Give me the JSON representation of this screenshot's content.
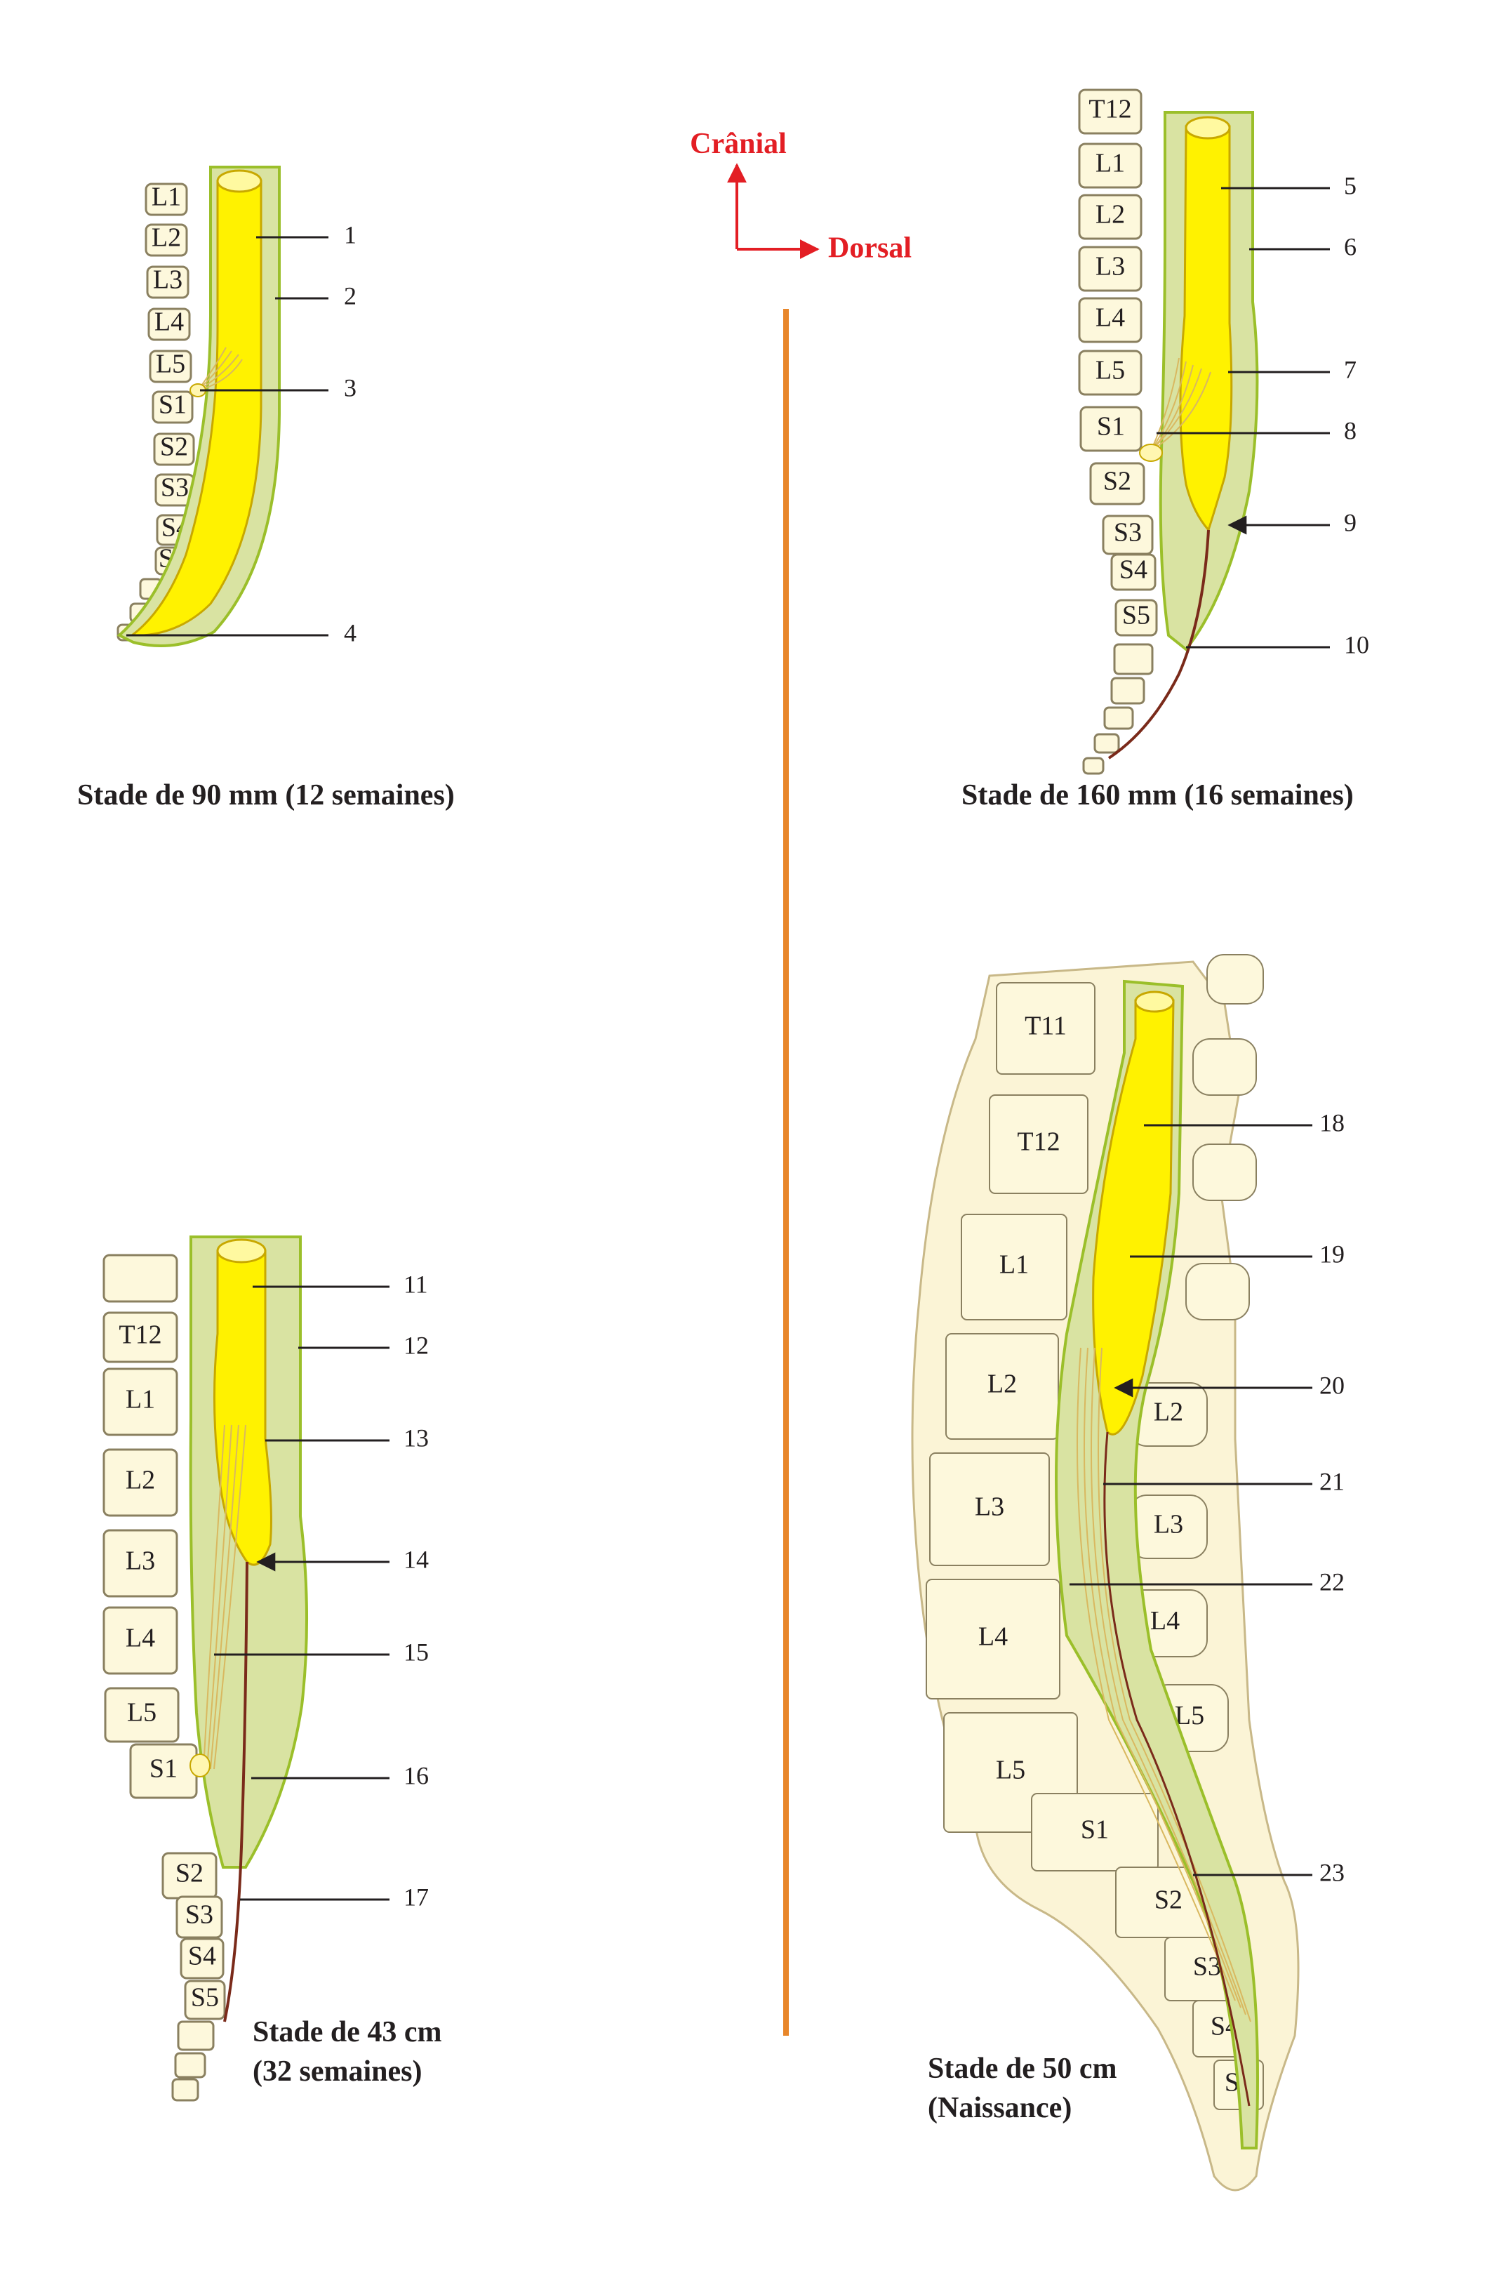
{
  "orientation": {
    "cranial": "Crânial",
    "dorsal": "Dorsal"
  },
  "colors": {
    "cord": "#fff200",
    "cord_stroke": "#c8a800",
    "dura": "#d9e3a2",
    "dura_stroke": "#9bbf2a",
    "vertebra": "#fdf8dc",
    "vertebra_stroke": "#8a8060",
    "filum": "#7a2a1a",
    "divider": "#e8862a",
    "orientation": "#e31e24",
    "nerve": "#e0c27a"
  },
  "panels": [
    {
      "id": "p90",
      "caption_lines": [
        "Stade de 90 mm (12 semaines)"
      ],
      "vertebrae": [
        "L1",
        "L2",
        "L3",
        "L4",
        "L5",
        "S1",
        "S2",
        "S3",
        "S4",
        "S5"
      ],
      "labels": [
        "1",
        "2",
        "3",
        "4"
      ]
    },
    {
      "id": "p160",
      "caption_lines": [
        "Stade de 160 mm (16 semaines)"
      ],
      "vertebrae": [
        "T12",
        "L1",
        "L2",
        "L3",
        "L4",
        "L5",
        "S1",
        "S2",
        "S3",
        "S4",
        "S5"
      ],
      "labels": [
        "5",
        "6",
        "7",
        "8",
        "9",
        "10"
      ]
    },
    {
      "id": "p43",
      "caption_lines": [
        "Stade de 43 cm",
        "(32 semaines)"
      ],
      "vertebrae": [
        "T12",
        "L1",
        "L2",
        "L3",
        "L4",
        "L5",
        "S1",
        "S2",
        "S3",
        "S4",
        "S5"
      ],
      "labels": [
        "11",
        "12",
        "13",
        "14",
        "15",
        "16",
        "17"
      ]
    },
    {
      "id": "p50",
      "caption_lines": [
        "Stade de 50 cm",
        "(Naissance)"
      ],
      "vertebrae": [
        "T11",
        "T12",
        "L1",
        "L2",
        "L3",
        "L4",
        "L5",
        "S1",
        "S2",
        "S3",
        "S4",
        "S5"
      ],
      "processes": [
        "L2",
        "L3",
        "L4",
        "L5"
      ],
      "labels": [
        "18",
        "19",
        "20",
        "21",
        "22",
        "23"
      ]
    }
  ]
}
